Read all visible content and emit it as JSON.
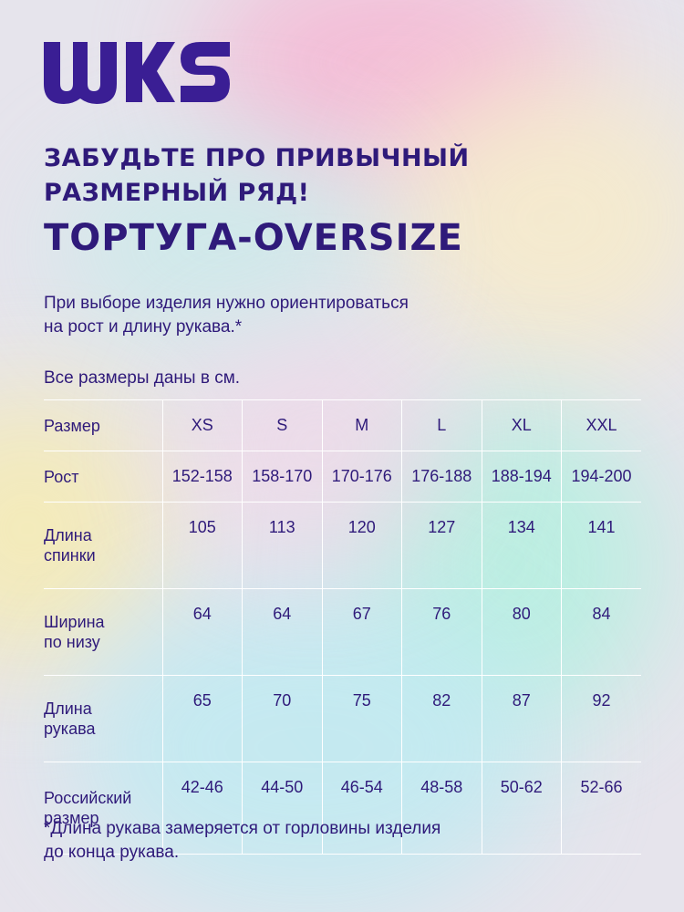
{
  "brand": {
    "name": "WKS",
    "color": "#3a1e94"
  },
  "headline": {
    "line1": "ЗАБУДЬТЕ ПРО ПРИВЫЧНЫЙ",
    "line2": "РАЗМЕРНЫЙ РЯД!",
    "line3": "ТОРТУГА-OVERSIZE"
  },
  "intro": {
    "line1": "При выборе изделия нужно ориентироваться",
    "line2": "на рост и длину рукава.*"
  },
  "units_note": "Все размеры даны в см.",
  "table": {
    "header": {
      "label": "Размер",
      "sizes": [
        "XS",
        "S",
        "M",
        "L",
        "XL",
        "XXL"
      ]
    },
    "rows": [
      {
        "label_line1": "Рост",
        "label_line2": "",
        "values": [
          "152-158",
          "158-170",
          "170-176",
          "176-188",
          "188-194",
          "194-200"
        ]
      },
      {
        "label_line1": "Длина",
        "label_line2": "спинки",
        "values": [
          "105",
          "113",
          "120",
          "127",
          "134",
          "141"
        ]
      },
      {
        "label_line1": "Ширина",
        "label_line2": "по низу",
        "values": [
          "64",
          "64",
          "67",
          "76",
          "80",
          "84"
        ]
      },
      {
        "label_line1": "Длина",
        "label_line2": "рукава",
        "values": [
          "65",
          "70",
          "75",
          "82",
          "87",
          "92"
        ]
      },
      {
        "label_line1": "Российский",
        "label_line2": "размер",
        "values": [
          "42-46",
          "44-50",
          "46-54",
          "48-58",
          "50-62",
          "52-66"
        ]
      }
    ]
  },
  "footnote": {
    "line1": "*Длина рукава замеряется от горловины изделия",
    "line2": "до конца рукава."
  },
  "colors": {
    "text": "#2f1a7a",
    "divider": "#ffffff"
  }
}
